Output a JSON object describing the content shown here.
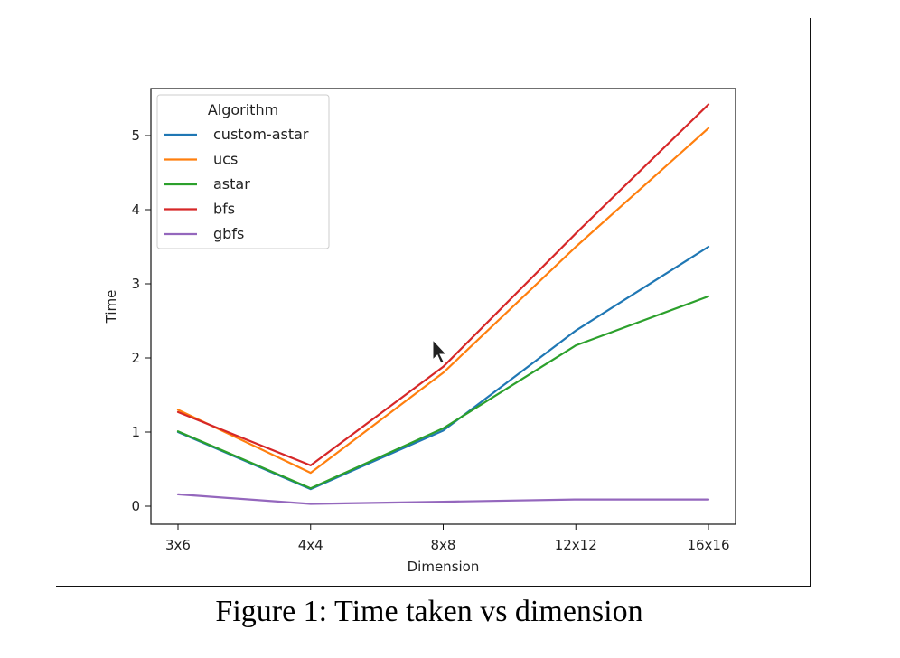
{
  "figure": {
    "caption": "Figure 1: Time taken vs dimension"
  },
  "chart_data": {
    "type": "line",
    "title": "",
    "xlabel": "Dimension",
    "ylabel": "Time",
    "categories": [
      "3x6",
      "4x4",
      "8x8",
      "12x12",
      "16x16"
    ],
    "yticks": [
      0,
      1,
      2,
      3,
      4,
      5
    ],
    "ylim": [
      -0.24,
      5.54
    ],
    "grid": false,
    "legend": {
      "title": "Algorithm",
      "placement": "top-left"
    },
    "series": [
      {
        "name": "custom-astar",
        "color": "#1f77b4",
        "values": [
          1.0,
          0.23,
          1.02,
          2.37,
          3.5
        ]
      },
      {
        "name": "ucs",
        "color": "#ff7f0e",
        "values": [
          1.3,
          0.45,
          1.8,
          3.5,
          5.1
        ]
      },
      {
        "name": "astar",
        "color": "#2ca02c",
        "values": [
          1.01,
          0.24,
          1.05,
          2.17,
          2.83
        ]
      },
      {
        "name": "bfs",
        "color": "#d62728",
        "values": [
          1.27,
          0.55,
          1.88,
          3.68,
          5.42
        ]
      },
      {
        "name": "gbfs",
        "color": "#9467bd",
        "values": [
          0.16,
          0.03,
          0.06,
          0.09,
          0.09
        ]
      }
    ]
  },
  "cursor": {
    "icon": "mouse-pointer-icon"
  }
}
